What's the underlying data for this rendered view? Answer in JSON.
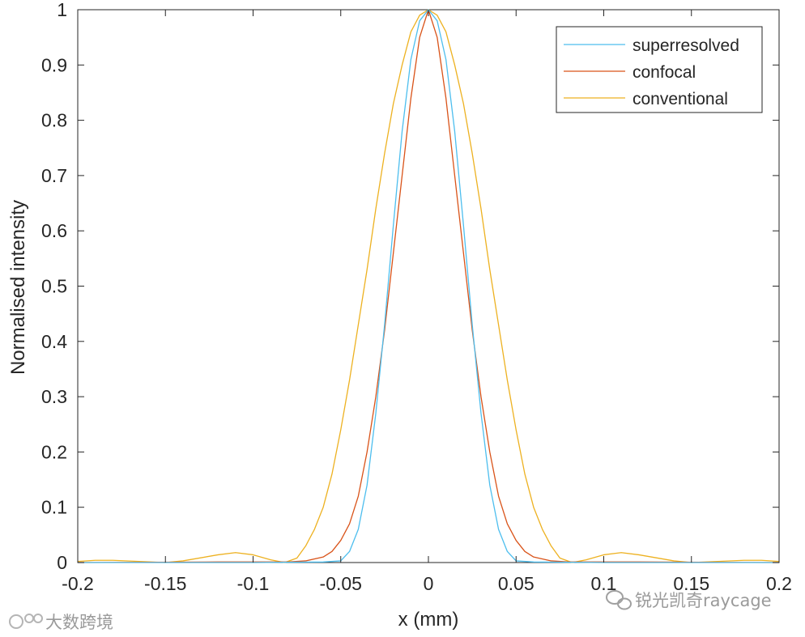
{
  "chart_data": {
    "type": "line",
    "title": "",
    "xlabel": "x (mm)",
    "ylabel": "Normalised intensity",
    "xlim": [
      -0.2,
      0.2
    ],
    "ylim": [
      0,
      1
    ],
    "xticks": [
      "-0.2",
      "-0.15",
      "-0.1",
      "-0.05",
      "0",
      "0.05",
      "0.1",
      "0.15",
      "0.2"
    ],
    "yticks": [
      "0",
      "0.1",
      "0.2",
      "0.3",
      "0.4",
      "0.5",
      "0.6",
      "0.7",
      "0.8",
      "0.9",
      "1"
    ],
    "grid": false,
    "legend_position": "top-right",
    "series": [
      {
        "name": "superresolved",
        "color": "#4DBEEE",
        "x": [
          -0.2,
          -0.1,
          -0.06,
          -0.05,
          -0.045,
          -0.04,
          -0.035,
          -0.03,
          -0.025,
          -0.02,
          -0.015,
          -0.01,
          -0.005,
          0,
          0.005,
          0.01,
          0.015,
          0.02,
          0.025,
          0.03,
          0.035,
          0.04,
          0.045,
          0.05,
          0.06,
          0.1,
          0.2
        ],
        "y": [
          0,
          0,
          0.001,
          0.003,
          0.02,
          0.06,
          0.14,
          0.27,
          0.43,
          0.61,
          0.78,
          0.91,
          0.98,
          1.0,
          0.98,
          0.91,
          0.78,
          0.61,
          0.43,
          0.27,
          0.14,
          0.06,
          0.02,
          0.003,
          0.001,
          0,
          0
        ]
      },
      {
        "name": "confocal",
        "color": "#D95319",
        "x": [
          -0.2,
          -0.12,
          -0.08,
          -0.07,
          -0.06,
          -0.055,
          -0.05,
          -0.045,
          -0.04,
          -0.035,
          -0.03,
          -0.025,
          -0.02,
          -0.015,
          -0.01,
          -0.005,
          0,
          0.005,
          0.01,
          0.015,
          0.02,
          0.025,
          0.03,
          0.035,
          0.04,
          0.045,
          0.05,
          0.055,
          0.06,
          0.07,
          0.08,
          0.12,
          0.2
        ],
        "y": [
          0,
          0.001,
          0.001,
          0.003,
          0.01,
          0.02,
          0.04,
          0.07,
          0.12,
          0.2,
          0.3,
          0.42,
          0.56,
          0.7,
          0.84,
          0.95,
          1.0,
          0.95,
          0.84,
          0.7,
          0.56,
          0.42,
          0.3,
          0.2,
          0.12,
          0.07,
          0.04,
          0.02,
          0.01,
          0.003,
          0.001,
          0.001,
          0
        ]
      },
      {
        "name": "conventional",
        "color": "#EDB120",
        "x": [
          -0.2,
          -0.19,
          -0.18,
          -0.165,
          -0.15,
          -0.14,
          -0.12,
          -0.11,
          -0.1,
          -0.09,
          -0.082,
          -0.075,
          -0.07,
          -0.065,
          -0.06,
          -0.055,
          -0.05,
          -0.045,
          -0.04,
          -0.035,
          -0.03,
          -0.025,
          -0.02,
          -0.015,
          -0.01,
          -0.005,
          0,
          0.005,
          0.01,
          0.015,
          0.02,
          0.025,
          0.03,
          0.035,
          0.04,
          0.045,
          0.05,
          0.055,
          0.06,
          0.065,
          0.07,
          0.075,
          0.082,
          0.09,
          0.1,
          0.11,
          0.12,
          0.14,
          0.15,
          0.165,
          0.18,
          0.19,
          0.2
        ],
        "y": [
          0.002,
          0.004,
          0.004,
          0.002,
          0.0,
          0.003,
          0.014,
          0.018,
          0.014,
          0.005,
          0.0,
          0.008,
          0.03,
          0.06,
          0.1,
          0.16,
          0.24,
          0.33,
          0.43,
          0.53,
          0.64,
          0.74,
          0.83,
          0.9,
          0.96,
          0.99,
          1.0,
          0.99,
          0.96,
          0.9,
          0.83,
          0.74,
          0.64,
          0.53,
          0.43,
          0.33,
          0.24,
          0.16,
          0.1,
          0.06,
          0.03,
          0.008,
          0.0,
          0.005,
          0.014,
          0.018,
          0.014,
          0.003,
          0.0,
          0.002,
          0.004,
          0.004,
          0.002
        ]
      }
    ]
  },
  "watermarks": {
    "left": "大数跨境",
    "right": "锐光凯奇raycage"
  }
}
